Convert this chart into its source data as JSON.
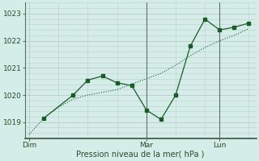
{
  "xlabel": "Pression niveau de la mer( hPa )",
  "bg_color": "#d4ede9",
  "grid_color": "#c0cece",
  "line_color": "#1a5c28",
  "ylim": [
    1018.4,
    1023.4
  ],
  "xlim": [
    -0.3,
    15.5
  ],
  "day_labels": [
    "Dim",
    "Mar",
    "Lun"
  ],
  "day_positions": [
    0,
    8,
    13
  ],
  "vline_positions": [
    8,
    13
  ],
  "series1_x": [
    0,
    1,
    2,
    3,
    4,
    5,
    6,
    7,
    8,
    9,
    10,
    11,
    12,
    13,
    14,
    15
  ],
  "series1_y": [
    1018.55,
    1019.15,
    1019.55,
    1019.85,
    1020.0,
    1020.1,
    1020.2,
    1020.4,
    1020.6,
    1020.8,
    1021.1,
    1021.45,
    1021.75,
    1022.0,
    1022.2,
    1022.45
  ],
  "series2_x": [
    1,
    3,
    4,
    5,
    6,
    7,
    8,
    9,
    10,
    11,
    12,
    13,
    14,
    15
  ],
  "series2_y": [
    1019.15,
    1020.0,
    1020.55,
    1020.7,
    1020.45,
    1020.35,
    1019.45,
    1019.1,
    1020.0,
    1021.8,
    1022.8,
    1022.4,
    1022.5,
    1022.65
  ],
  "yticks": [
    1019,
    1020,
    1021,
    1022,
    1023
  ],
  "figsize": [
    3.2,
    2.0
  ],
  "dpi": 100
}
